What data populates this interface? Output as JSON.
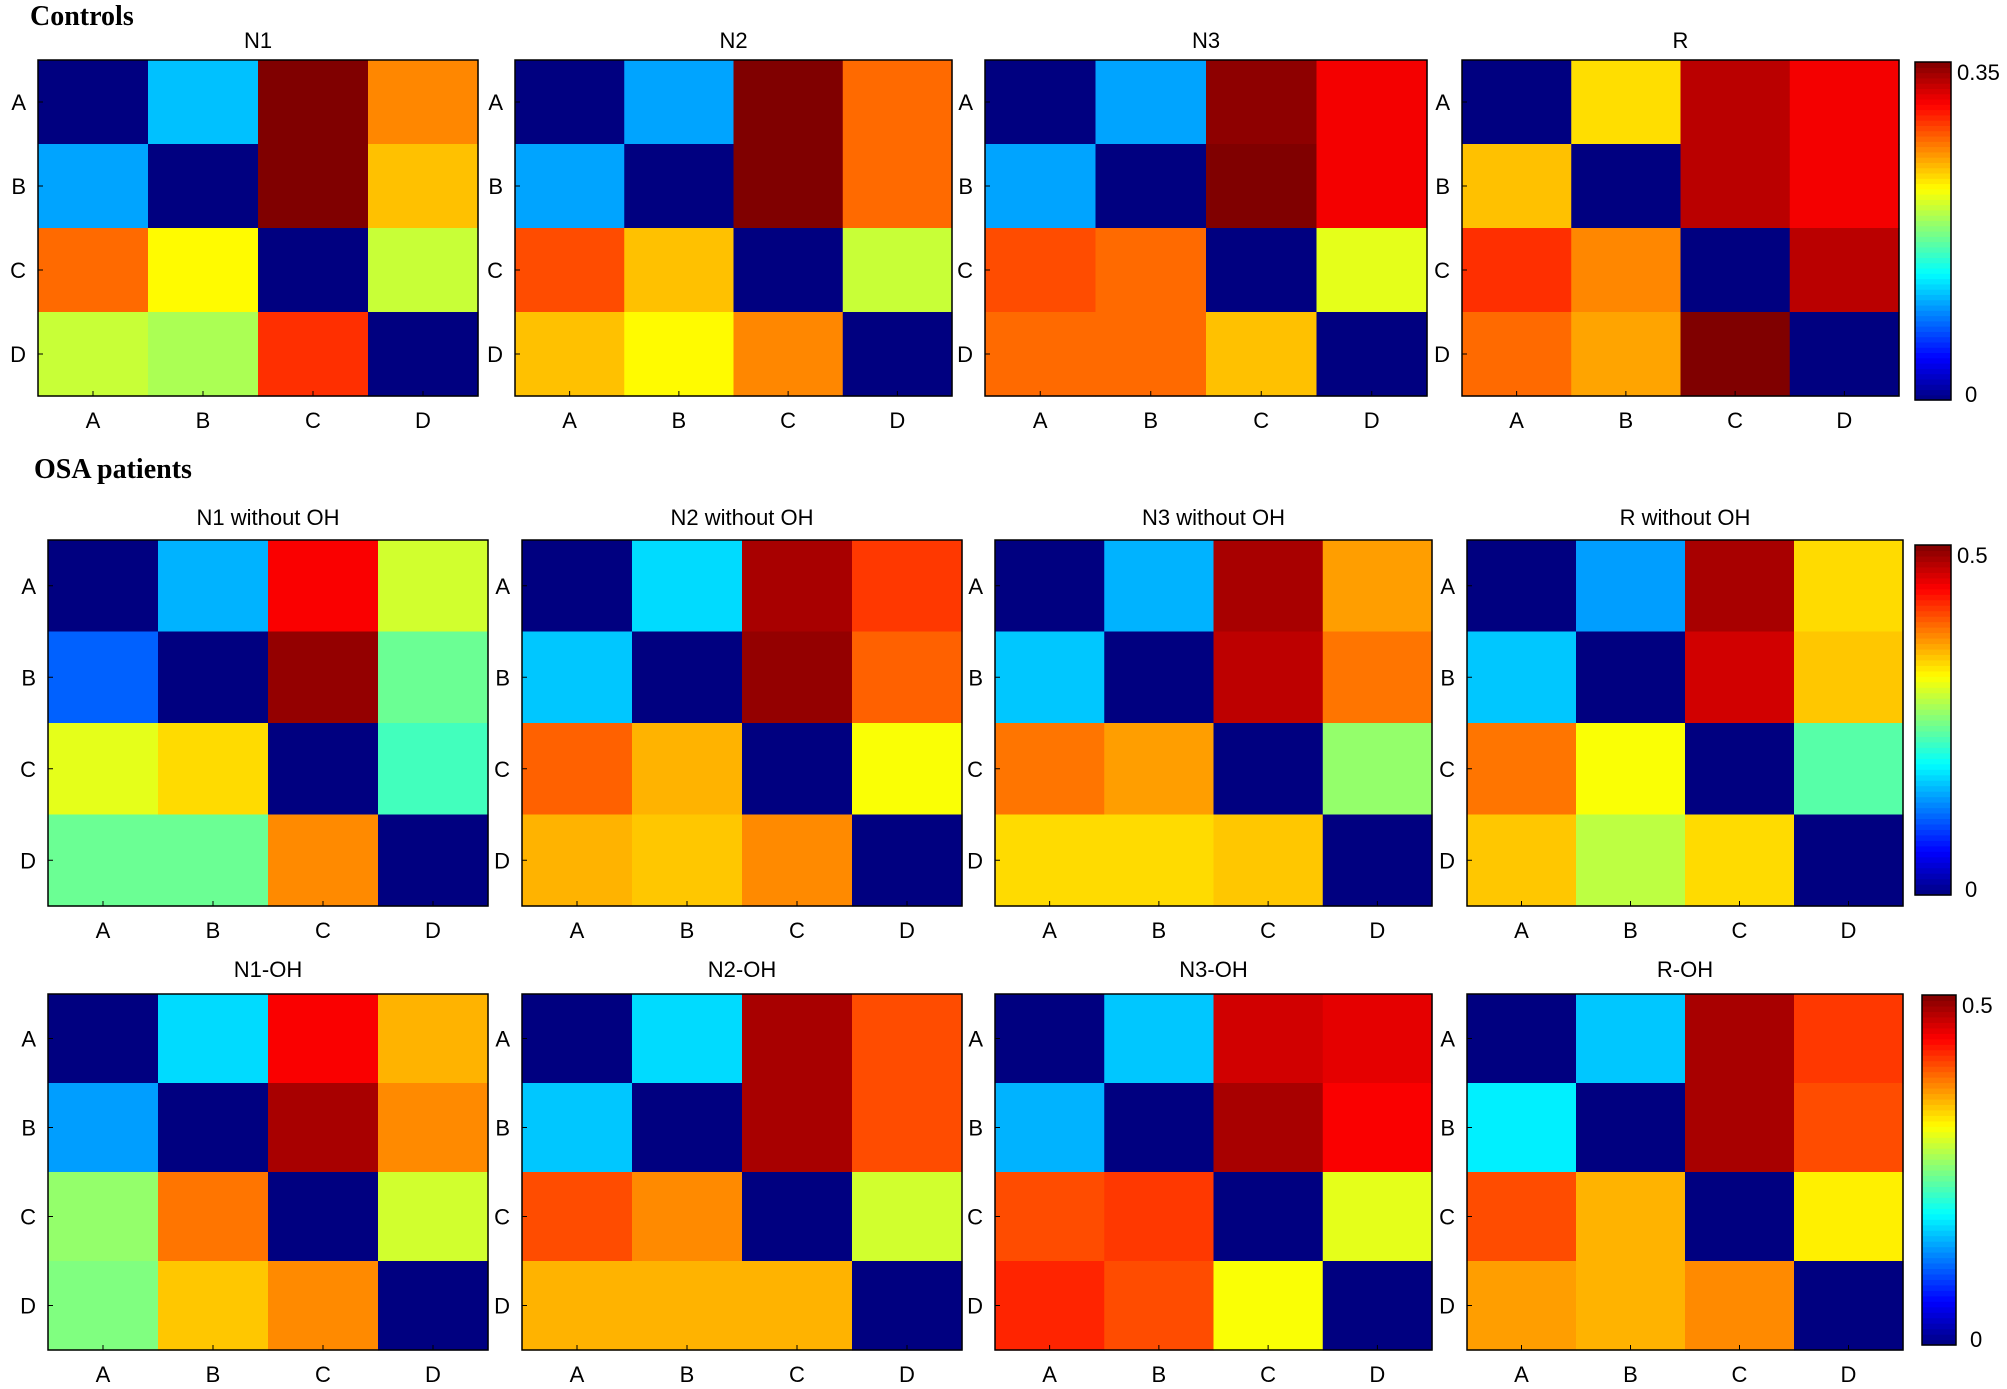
{
  "sections": {
    "controls_label": "Controls",
    "osa_label": "OSA patients"
  },
  "colormap": "jet",
  "chart_data": [
    {
      "type": "heatmap",
      "group": "Controls",
      "title": "N1",
      "x_categories": [
        "A",
        "B",
        "C",
        "D"
      ],
      "y_categories": [
        "A",
        "B",
        "C",
        "D"
      ],
      "clim": [
        0,
        0.35
      ],
      "values": [
        [
          0,
          0.11,
          0.35,
          0.26
        ],
        [
          0.1,
          0,
          0.35,
          0.24
        ],
        [
          0.27,
          0.22,
          0,
          0.2
        ],
        [
          0.2,
          0.19,
          0.29,
          0
        ]
      ]
    },
    {
      "type": "heatmap",
      "group": "Controls",
      "title": "N2",
      "x_categories": [
        "A",
        "B",
        "C",
        "D"
      ],
      "y_categories": [
        "A",
        "B",
        "C",
        "D"
      ],
      "clim": [
        0,
        0.35
      ],
      "values": [
        [
          0,
          0.1,
          0.35,
          0.27
        ],
        [
          0.1,
          0,
          0.35,
          0.27
        ],
        [
          0.28,
          0.24,
          0,
          0.2
        ],
        [
          0.24,
          0.22,
          0.26,
          0
        ]
      ]
    },
    {
      "type": "heatmap",
      "group": "Controls",
      "title": "N3",
      "x_categories": [
        "A",
        "B",
        "C",
        "D"
      ],
      "y_categories": [
        "A",
        "B",
        "C",
        "D"
      ],
      "clim": [
        0,
        0.35
      ],
      "values": [
        [
          0,
          0.1,
          0.345,
          0.31
        ],
        [
          0.1,
          0,
          0.35,
          0.31
        ],
        [
          0.28,
          0.27,
          0,
          0.21
        ],
        [
          0.27,
          0.27,
          0.24,
          0
        ]
      ]
    },
    {
      "type": "heatmap",
      "group": "Controls",
      "title": "R",
      "x_categories": [
        "A",
        "B",
        "C",
        "D"
      ],
      "y_categories": [
        "A",
        "B",
        "C",
        "D"
      ],
      "clim": [
        0,
        0.35
      ],
      "values": [
        [
          0,
          0.23,
          0.33,
          0.31
        ],
        [
          0.24,
          0,
          0.33,
          0.31
        ],
        [
          0.29,
          0.26,
          0,
          0.33
        ],
        [
          0.27,
          0.25,
          0.35,
          0
        ]
      ]
    },
    {
      "type": "heatmap",
      "group": "OSA patients",
      "title": "N1 without OH",
      "x_categories": [
        "A",
        "B",
        "C",
        "D"
      ],
      "y_categories": [
        "A",
        "B",
        "C",
        "D"
      ],
      "clim": [
        0,
        0.5
      ],
      "values": [
        [
          0,
          0.15,
          0.44,
          0.29
        ],
        [
          0.11,
          0,
          0.49,
          0.24
        ],
        [
          0.3,
          0.33,
          0,
          0.22
        ],
        [
          0.24,
          0.24,
          0.37,
          0
        ]
      ]
    },
    {
      "type": "heatmap",
      "group": "OSA patients",
      "title": "N2 without OH",
      "x_categories": [
        "A",
        "B",
        "C",
        "D"
      ],
      "y_categories": [
        "A",
        "B",
        "C",
        "D"
      ],
      "clim": [
        0,
        0.5
      ],
      "values": [
        [
          0,
          0.17,
          0.48,
          0.41
        ],
        [
          0.16,
          0,
          0.49,
          0.39
        ],
        [
          0.39,
          0.35,
          0,
          0.31
        ],
        [
          0.35,
          0.34,
          0.37,
          0
        ]
      ]
    },
    {
      "type": "heatmap",
      "group": "OSA patients",
      "title": "N3 without OH",
      "x_categories": [
        "A",
        "B",
        "C",
        "D"
      ],
      "y_categories": [
        "A",
        "B",
        "C",
        "D"
      ],
      "clim": [
        0,
        0.5
      ],
      "values": [
        [
          0,
          0.15,
          0.48,
          0.36
        ],
        [
          0.16,
          0,
          0.47,
          0.38
        ],
        [
          0.38,
          0.36,
          0,
          0.26
        ],
        [
          0.33,
          0.33,
          0.34,
          0
        ]
      ]
    },
    {
      "type": "heatmap",
      "group": "OSA patients",
      "title": "R without OH",
      "x_categories": [
        "A",
        "B",
        "C",
        "D"
      ],
      "y_categories": [
        "A",
        "B",
        "C",
        "D"
      ],
      "clim": [
        0,
        0.5
      ],
      "values": [
        [
          0,
          0.14,
          0.48,
          0.33
        ],
        [
          0.16,
          0,
          0.46,
          0.34
        ],
        [
          0.38,
          0.31,
          0,
          0.23
        ],
        [
          0.34,
          0.28,
          0.33,
          0
        ]
      ]
    },
    {
      "type": "heatmap",
      "group": "OSA patients",
      "title": "N1-OH",
      "x_categories": [
        "A",
        "B",
        "C",
        "D"
      ],
      "y_categories": [
        "A",
        "B",
        "C",
        "D"
      ],
      "clim": [
        0,
        0.5
      ],
      "values": [
        [
          0,
          0.17,
          0.44,
          0.35
        ],
        [
          0.14,
          0,
          0.48,
          0.37
        ],
        [
          0.26,
          0.38,
          0,
          0.29
        ],
        [
          0.25,
          0.34,
          0.37,
          0
        ]
      ]
    },
    {
      "type": "heatmap",
      "group": "OSA patients",
      "title": "N2-OH",
      "x_categories": [
        "A",
        "B",
        "C",
        "D"
      ],
      "y_categories": [
        "A",
        "B",
        "C",
        "D"
      ],
      "clim": [
        0,
        0.5
      ],
      "values": [
        [
          0,
          0.17,
          0.48,
          0.4
        ],
        [
          0.16,
          0,
          0.48,
          0.4
        ],
        [
          0.4,
          0.37,
          0,
          0.29
        ],
        [
          0.35,
          0.35,
          0.35,
          0
        ]
      ]
    },
    {
      "type": "heatmap",
      "group": "OSA patients",
      "title": "N3-OH",
      "x_categories": [
        "A",
        "B",
        "C",
        "D"
      ],
      "y_categories": [
        "A",
        "B",
        "C",
        "D"
      ],
      "clim": [
        0,
        0.5
      ],
      "values": [
        [
          0,
          0.16,
          0.46,
          0.45
        ],
        [
          0.15,
          0,
          0.48,
          0.44
        ],
        [
          0.4,
          0.41,
          0,
          0.3
        ],
        [
          0.42,
          0.4,
          0.31,
          0
        ]
      ]
    },
    {
      "type": "heatmap",
      "group": "OSA patients",
      "title": "R-OH",
      "x_categories": [
        "A",
        "B",
        "C",
        "D"
      ],
      "y_categories": [
        "A",
        "B",
        "C",
        "D"
      ],
      "clim": [
        0,
        0.5
      ],
      "values": [
        [
          0,
          0.16,
          0.48,
          0.41
        ],
        [
          0.18,
          0,
          0.48,
          0.4
        ],
        [
          0.4,
          0.35,
          0,
          0.32
        ],
        [
          0.36,
          0.35,
          0.37,
          0
        ]
      ]
    }
  ],
  "colorbars": [
    {
      "min_label": "0",
      "max_label": "0.35",
      "min": 0,
      "max": 0.35
    },
    {
      "min_label": "0",
      "max_label": "0.5",
      "min": 0,
      "max": 0.5
    },
    {
      "min_label": "0",
      "max_label": "0.5",
      "min": 0,
      "max": 0.5
    }
  ]
}
